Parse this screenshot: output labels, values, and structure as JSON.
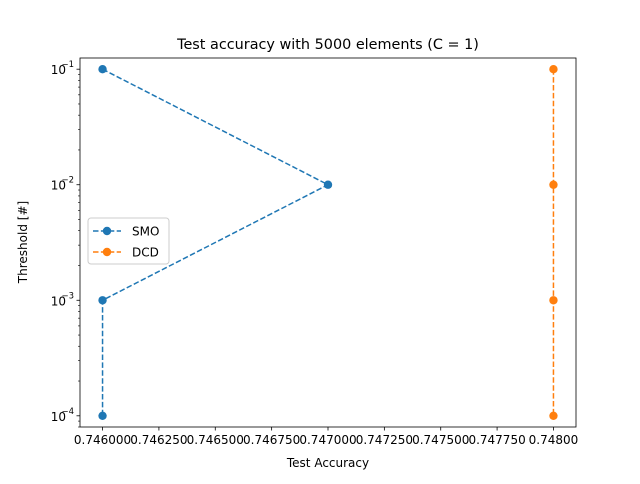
{
  "chart_data": {
    "type": "line",
    "title": "Test accuracy with 5000 elements (C = 1)",
    "xlabel": "Test Accuracy",
    "ylabel": "Threshold [#]",
    "xlim": [
      0.7459,
      0.7481
    ],
    "ylim": [
      8e-05,
      0.125
    ],
    "yscale": "log",
    "grid": false,
    "legend_position": "center-left",
    "x_ticks": [
      {
        "value": 0.746,
        "label": "0.746000"
      },
      {
        "value": 0.74625,
        "label": "0.746250"
      },
      {
        "value": 0.7465,
        "label": "0.746500"
      },
      {
        "value": 0.74675,
        "label": "0.746750"
      },
      {
        "value": 0.747,
        "label": "0.747000"
      },
      {
        "value": 0.74725,
        "label": "0.747250"
      },
      {
        "value": 0.7475,
        "label": "0.747500"
      },
      {
        "value": 0.74775,
        "label": "0.747750"
      },
      {
        "value": 0.748,
        "label": "0.74800"
      }
    ],
    "y_ticks": [
      {
        "value": 0.0001,
        "base": "10",
        "exp": "−4"
      },
      {
        "value": 0.001,
        "base": "10",
        "exp": "−3"
      },
      {
        "value": 0.01,
        "base": "10",
        "exp": "−2"
      },
      {
        "value": 0.1,
        "base": "10",
        "exp": "−1"
      }
    ],
    "series": [
      {
        "name": "SMO",
        "color": "#1f77b4",
        "linestyle": "dashed",
        "marker": "circle",
        "points": [
          {
            "x": 0.746,
            "y": 0.1
          },
          {
            "x": 0.747,
            "y": 0.01
          },
          {
            "x": 0.746,
            "y": 0.001
          },
          {
            "x": 0.746,
            "y": 0.0001
          }
        ]
      },
      {
        "name": "DCD",
        "color": "#ff7f0e",
        "linestyle": "dashed",
        "marker": "circle",
        "points": [
          {
            "x": 0.748,
            "y": 0.1
          },
          {
            "x": 0.748,
            "y": 0.01
          },
          {
            "x": 0.748,
            "y": 0.001
          },
          {
            "x": 0.748,
            "y": 0.0001
          }
        ]
      }
    ]
  }
}
